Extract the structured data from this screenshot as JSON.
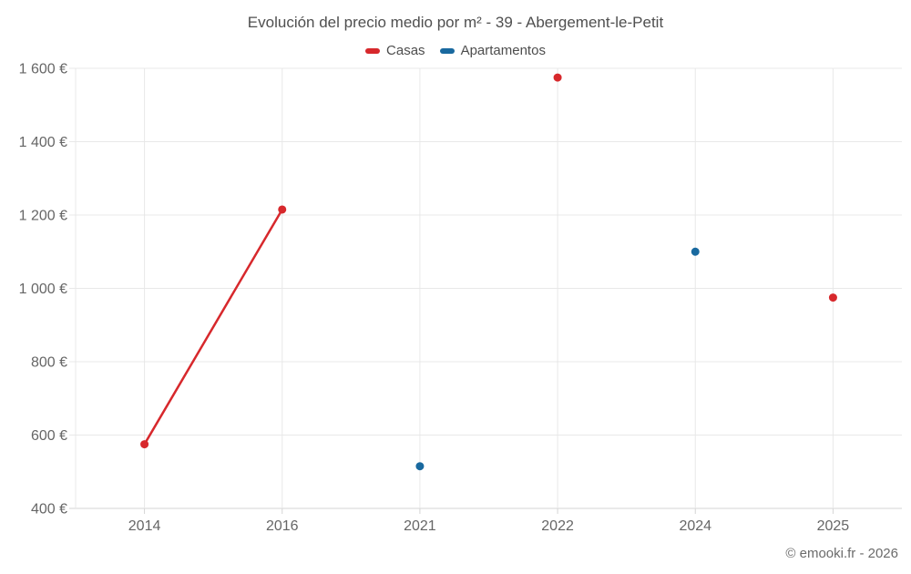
{
  "header": {
    "title": "Evolución del precio medio por m² - 39 - Abergement-le-Petit"
  },
  "legend": {
    "items": [
      {
        "label": "Casas",
        "color": "#d7282c"
      },
      {
        "label": "Apartamentos",
        "color": "#19699f"
      }
    ]
  },
  "footer": {
    "credit": "© emooki.fr - 2026"
  },
  "chart_data": {
    "type": "line",
    "title": "Evolución del precio medio por m² - 39 - Abergement-le-Petit",
    "categories": [
      "2014",
      "2016",
      "2021",
      "2022",
      "2024",
      "2025"
    ],
    "series": [
      {
        "name": "Casas",
        "color": "#d7282c",
        "values": [
          575,
          1215,
          null,
          1575,
          null,
          975
        ]
      },
      {
        "name": "Apartamentos",
        "color": "#19699f",
        "values": [
          null,
          null,
          515,
          null,
          1100,
          null
        ]
      }
    ],
    "xlabel": "",
    "ylabel": "",
    "ylim": [
      400,
      1600
    ],
    "y_tick_step": 200,
    "y_tick_labels": [
      "400 €",
      "600 €",
      "800 €",
      "1 000 €",
      "1 200 €",
      "1 400 €",
      "1 600 €"
    ],
    "value_suffix": " €",
    "grid": true,
    "legend_position": "top",
    "marker": "circle",
    "line_breaks_on_null": true
  }
}
